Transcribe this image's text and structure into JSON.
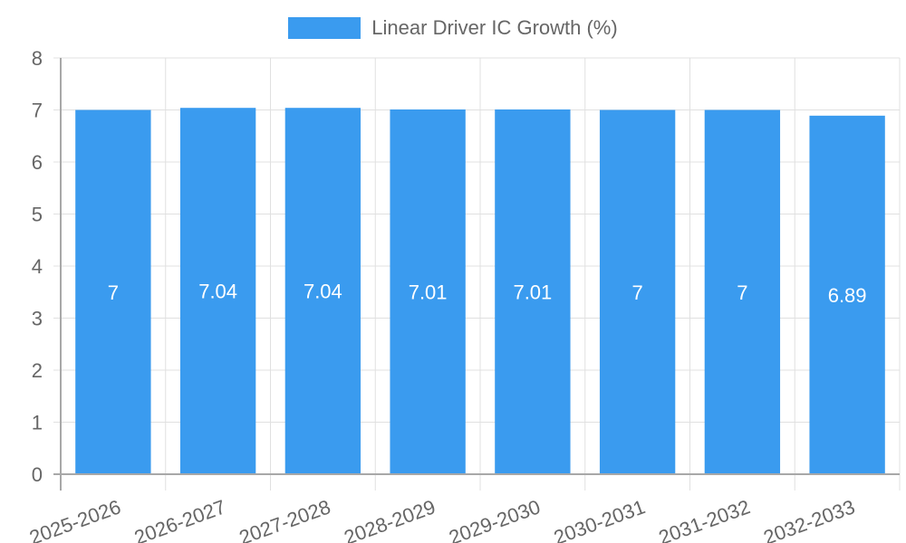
{
  "legend": {
    "label": "Linear Driver IC Growth (%)",
    "color": "#3a9bef"
  },
  "colors": {
    "bar": "#3a9bef",
    "grid": "#e0e0e0",
    "axis": "#a8a8a8",
    "tick_text": "#666666",
    "bar_label": "#ffffff"
  },
  "chart_data": {
    "type": "bar",
    "title": "",
    "xlabel": "",
    "ylabel": "",
    "categories": [
      "2025-2026",
      "2026-2027",
      "2027-2028",
      "2028-2029",
      "2029-2030",
      "2030-2031",
      "2031-2032",
      "2032-2033"
    ],
    "series": [
      {
        "name": "Linear Driver IC Growth (%)",
        "values": [
          7,
          7.04,
          7.04,
          7.01,
          7.01,
          7,
          7,
          6.89
        ],
        "labels": [
          "7",
          "7.04",
          "7.04",
          "7.01",
          "7.01",
          "7",
          "7",
          "6.89"
        ]
      }
    ],
    "ylim": [
      0,
      8
    ],
    "yticks": [
      "0",
      "1",
      "2",
      "3",
      "4",
      "5",
      "6",
      "7",
      "8"
    ],
    "grid": true,
    "legend_position": "top",
    "x_tick_rotation": -20
  }
}
